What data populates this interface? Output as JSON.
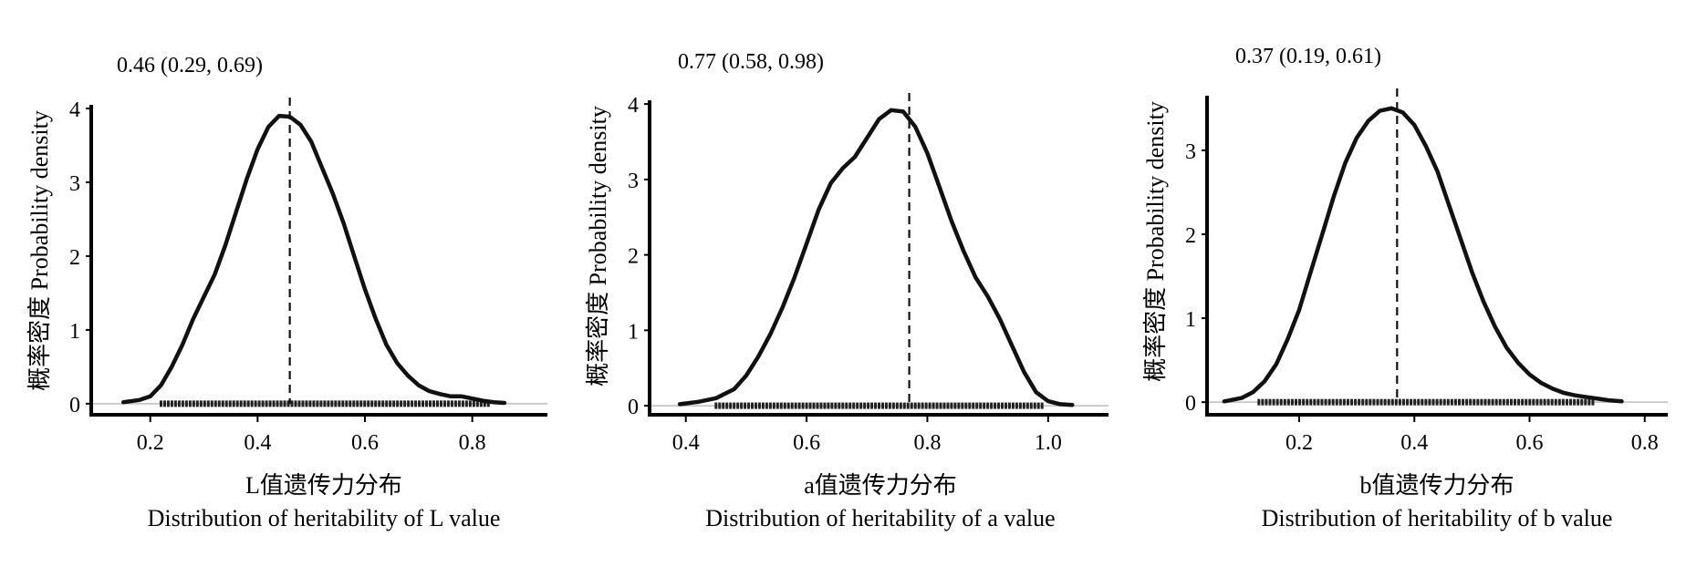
{
  "chart_data": [
    {
      "type": "line",
      "annotation": "0.46 (0.29, 0.69)",
      "xlabel_cn": "L值遗传力分布",
      "xlabel_en": "Distribution of heritability of L value",
      "ylabel": "概率密度 Probability density",
      "xlim": [
        0.09,
        0.94
      ],
      "ylim": [
        -0.15,
        4.05
      ],
      "xticks": [
        0.2,
        0.4,
        0.6,
        0.8
      ],
      "xtick_labels": [
        "0.2",
        "0.4",
        "0.6",
        "0.8"
      ],
      "yticks": [
        0,
        1,
        2,
        3,
        4
      ],
      "ytick_labels": [
        "0",
        "1",
        "2",
        "3",
        "4"
      ],
      "mode": 0.46,
      "series": [
        {
          "x": [
            0.15,
            0.18,
            0.2,
            0.22,
            0.24,
            0.26,
            0.28,
            0.3,
            0.32,
            0.34,
            0.36,
            0.38,
            0.4,
            0.42,
            0.44,
            0.46,
            0.48,
            0.5,
            0.52,
            0.54,
            0.56,
            0.58,
            0.6,
            0.62,
            0.64,
            0.66,
            0.68,
            0.7,
            0.72,
            0.74,
            0.76,
            0.78,
            0.8,
            0.82,
            0.84,
            0.86
          ],
          "y": [
            0.02,
            0.05,
            0.1,
            0.25,
            0.5,
            0.8,
            1.15,
            1.45,
            1.75,
            2.15,
            2.6,
            3.05,
            3.45,
            3.75,
            3.9,
            3.89,
            3.78,
            3.55,
            3.2,
            2.85,
            2.45,
            2.0,
            1.55,
            1.15,
            0.8,
            0.55,
            0.38,
            0.25,
            0.17,
            0.13,
            0.1,
            0.1,
            0.07,
            0.04,
            0.02,
            0.01
          ]
        }
      ],
      "rug": {
        "from": 0.22,
        "to": 0.83
      }
    },
    {
      "type": "line",
      "annotation": "0.77 (0.58, 0.98)",
      "xlabel_cn": "a值遗传力分布",
      "xlabel_en": "Distribution of heritability of a value",
      "ylabel": "概率密度 Probability density",
      "xlim": [
        0.34,
        1.1
      ],
      "ylim": [
        -0.12,
        4.05
      ],
      "xticks": [
        0.4,
        0.6,
        0.8,
        1.0
      ],
      "xtick_labels": [
        "0.4",
        "0.6",
        "0.8",
        "1.0"
      ],
      "yticks": [
        0,
        1,
        2,
        3,
        4
      ],
      "ytick_labels": [
        "0",
        "1",
        "2",
        "3",
        "4"
      ],
      "mode": 0.77,
      "series": [
        {
          "x": [
            0.39,
            0.42,
            0.45,
            0.48,
            0.5,
            0.52,
            0.54,
            0.56,
            0.58,
            0.6,
            0.62,
            0.64,
            0.66,
            0.68,
            0.7,
            0.72,
            0.74,
            0.76,
            0.78,
            0.8,
            0.82,
            0.84,
            0.86,
            0.88,
            0.9,
            0.92,
            0.94,
            0.96,
            0.98,
            1.0,
            1.02,
            1.04
          ],
          "y": [
            0.02,
            0.05,
            0.1,
            0.22,
            0.4,
            0.65,
            0.95,
            1.3,
            1.7,
            2.15,
            2.6,
            2.95,
            3.15,
            3.3,
            3.55,
            3.8,
            3.92,
            3.9,
            3.7,
            3.35,
            2.9,
            2.45,
            2.05,
            1.7,
            1.45,
            1.15,
            0.8,
            0.45,
            0.18,
            0.06,
            0.02,
            0.01
          ]
        }
      ],
      "rug": {
        "from": 0.45,
        "to": 0.99
      }
    },
    {
      "type": "line",
      "annotation": "0.37 (0.19, 0.61)",
      "xlabel_cn": "b值遗传力分布",
      "xlabel_en": "Distribution of heritability of b value",
      "ylabel": "概率密度 Probability density",
      "xlim": [
        0.04,
        0.84
      ],
      "ylim": [
        -0.15,
        3.65
      ],
      "xticks": [
        0.2,
        0.4,
        0.6,
        0.8
      ],
      "xtick_labels": [
        "0.2",
        "0.4",
        "0.6",
        "0.8"
      ],
      "yticks": [
        0,
        1,
        2,
        3
      ],
      "ytick_labels": [
        "0",
        "1",
        "2",
        "3"
      ],
      "mode": 0.37,
      "series": [
        {
          "x": [
            0.07,
            0.1,
            0.12,
            0.14,
            0.16,
            0.18,
            0.2,
            0.22,
            0.24,
            0.26,
            0.28,
            0.3,
            0.32,
            0.34,
            0.36,
            0.38,
            0.4,
            0.42,
            0.44,
            0.46,
            0.48,
            0.5,
            0.52,
            0.54,
            0.56,
            0.58,
            0.6,
            0.62,
            0.64,
            0.66,
            0.68,
            0.7,
            0.72,
            0.74,
            0.76
          ],
          "y": [
            0.01,
            0.05,
            0.12,
            0.25,
            0.45,
            0.75,
            1.1,
            1.55,
            2.0,
            2.45,
            2.85,
            3.15,
            3.35,
            3.47,
            3.5,
            3.45,
            3.3,
            3.05,
            2.75,
            2.35,
            1.95,
            1.55,
            1.2,
            0.9,
            0.65,
            0.47,
            0.33,
            0.23,
            0.16,
            0.11,
            0.08,
            0.06,
            0.04,
            0.02,
            0.01
          ]
        }
      ],
      "rug": {
        "from": 0.13,
        "to": 0.71
      }
    }
  ]
}
